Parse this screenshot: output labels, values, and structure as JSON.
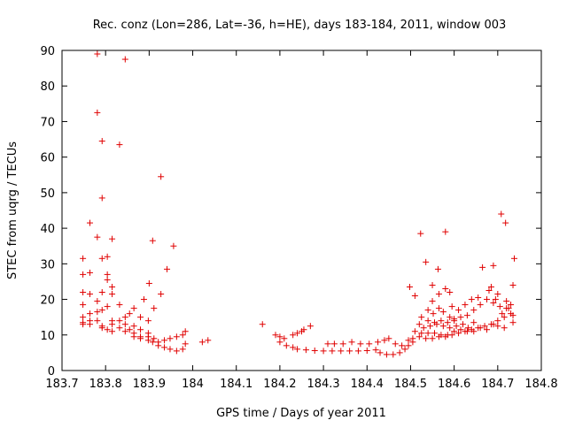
{
  "chart_data": {
    "type": "scatter",
    "title": "Rec. conz (Lon=286, Lat=-36, h=HE), days 183-184, 2011, window 003",
    "xlabel": "GPS time / Days of year 2011",
    "ylabel": "STEC from uqrg / TECUs",
    "xlim": [
      183.7,
      184.8
    ],
    "ylim": [
      0,
      90
    ],
    "xticks": [
      "183.7",
      "183.8",
      "183.9",
      "184",
      "184.1",
      "184.2",
      "184.3",
      "184.4",
      "184.5",
      "184.6",
      "184.7",
      "184.8"
    ],
    "yticks": [
      "0",
      "10",
      "20",
      "30",
      "40",
      "50",
      "60",
      "70",
      "80",
      "90"
    ],
    "grid": false,
    "legend": "none",
    "marker": "plus",
    "color": "#e00000",
    "points": [
      [
        183.781,
        89
      ],
      [
        183.845,
        87.5
      ],
      [
        183.781,
        72.5
      ],
      [
        183.792,
        64.5
      ],
      [
        183.832,
        63.5
      ],
      [
        183.927,
        54.5
      ],
      [
        183.792,
        48.5
      ],
      [
        183.764,
        41.5
      ],
      [
        183.781,
        37.5
      ],
      [
        183.815,
        37
      ],
      [
        183.908,
        36.5
      ],
      [
        183.956,
        35
      ],
      [
        183.748,
        31.5
      ],
      [
        183.792,
        31.5
      ],
      [
        183.804,
        32
      ],
      [
        183.941,
        28.5
      ],
      [
        183.764,
        27.5
      ],
      [
        183.748,
        27
      ],
      [
        183.804,
        27
      ],
      [
        183.804,
        25.5
      ],
      [
        183.9,
        24.5
      ],
      [
        183.815,
        23.5
      ],
      [
        183.748,
        22
      ],
      [
        183.764,
        21.5
      ],
      [
        183.792,
        22
      ],
      [
        183.815,
        21.5
      ],
      [
        183.927,
        21.5
      ],
      [
        183.888,
        20
      ],
      [
        183.781,
        19.5
      ],
      [
        183.748,
        18.5
      ],
      [
        183.804,
        18
      ],
      [
        183.832,
        18.5
      ],
      [
        183.865,
        17.5
      ],
      [
        183.792,
        17
      ],
      [
        183.911,
        17.5
      ],
      [
        183.781,
        16.5
      ],
      [
        183.764,
        16
      ],
      [
        183.855,
        16
      ],
      [
        183.748,
        15
      ],
      [
        183.845,
        15
      ],
      [
        183.88,
        15
      ],
      [
        183.748,
        13.5
      ],
      [
        183.764,
        14
      ],
      [
        183.781,
        14
      ],
      [
        183.815,
        14
      ],
      [
        183.832,
        14
      ],
      [
        183.898,
        14
      ],
      [
        183.748,
        13
      ],
      [
        183.764,
        13
      ],
      [
        183.792,
        12.5
      ],
      [
        183.815,
        13
      ],
      [
        183.845,
        13
      ],
      [
        183.865,
        12.5
      ],
      [
        183.792,
        12
      ],
      [
        183.804,
        11.5
      ],
      [
        183.832,
        12
      ],
      [
        183.855,
        11.5
      ],
      [
        183.88,
        11.5
      ],
      [
        183.815,
        11
      ],
      [
        183.845,
        11
      ],
      [
        183.865,
        10.5
      ],
      [
        183.898,
        10.5
      ],
      [
        183.865,
        9.5
      ],
      [
        183.88,
        9.5
      ],
      [
        183.898,
        9.5
      ],
      [
        183.911,
        9
      ],
      [
        183.88,
        9
      ],
      [
        183.898,
        8.5
      ],
      [
        183.921,
        8
      ],
      [
        183.935,
        8.5
      ],
      [
        183.948,
        9
      ],
      [
        183.963,
        9.5
      ],
      [
        183.977,
        10
      ],
      [
        183.983,
        11
      ],
      [
        183.908,
        8
      ],
      [
        183.921,
        7
      ],
      [
        183.935,
        6.5
      ],
      [
        183.948,
        6
      ],
      [
        183.963,
        5.5
      ],
      [
        183.977,
        6
      ],
      [
        183.983,
        7.5
      ],
      [
        184.022,
        8
      ],
      [
        184.035,
        8.5
      ],
      [
        184.16,
        13
      ],
      [
        184.19,
        10
      ],
      [
        184.2,
        9.5
      ],
      [
        184.21,
        9
      ],
      [
        184.23,
        10
      ],
      [
        184.24,
        10.5
      ],
      [
        184.25,
        11
      ],
      [
        184.255,
        11.5
      ],
      [
        184.27,
        12.5
      ],
      [
        184.2,
        8
      ],
      [
        184.215,
        7
      ],
      [
        184.23,
        6.5
      ],
      [
        184.24,
        6
      ],
      [
        184.26,
        5.8
      ],
      [
        184.28,
        5.6
      ],
      [
        184.3,
        5.5
      ],
      [
        184.32,
        5.5
      ],
      [
        184.34,
        5.5
      ],
      [
        184.36,
        5.5
      ],
      [
        184.38,
        5.5
      ],
      [
        184.4,
        5.6
      ],
      [
        184.42,
        5.8
      ],
      [
        184.31,
        7.5
      ],
      [
        184.325,
        7.5
      ],
      [
        184.345,
        7.5
      ],
      [
        184.365,
        8
      ],
      [
        184.385,
        7.5
      ],
      [
        184.405,
        7.5
      ],
      [
        184.425,
        8
      ],
      [
        184.44,
        8.5
      ],
      [
        184.45,
        9
      ],
      [
        184.43,
        5
      ],
      [
        184.445,
        4.5
      ],
      [
        184.46,
        4.5
      ],
      [
        184.475,
        5
      ],
      [
        184.487,
        6
      ],
      [
        184.495,
        7
      ],
      [
        184.505,
        8
      ],
      [
        184.465,
        7.5
      ],
      [
        184.48,
        7
      ],
      [
        184.495,
        8.5
      ],
      [
        184.498,
        23.5
      ],
      [
        184.51,
        21
      ],
      [
        184.523,
        38.5
      ],
      [
        184.535,
        30.5
      ],
      [
        184.55,
        24
      ],
      [
        184.563,
        28.5
      ],
      [
        184.58,
        39
      ],
      [
        184.59,
        22
      ],
      [
        184.54,
        17
      ],
      [
        184.552,
        16
      ],
      [
        184.565,
        17.5
      ],
      [
        184.575,
        16.5
      ],
      [
        184.59,
        15
      ],
      [
        184.6,
        14
      ],
      [
        184.52,
        13
      ],
      [
        184.53,
        12
      ],
      [
        184.545,
        12.5
      ],
      [
        184.56,
        13
      ],
      [
        184.575,
        12.5
      ],
      [
        184.59,
        12
      ],
      [
        184.605,
        12.5
      ],
      [
        184.62,
        13
      ],
      [
        184.632,
        12
      ],
      [
        184.645,
        13.5
      ],
      [
        184.51,
        11
      ],
      [
        184.525,
        10.5
      ],
      [
        184.54,
        10.5
      ],
      [
        184.555,
        10.5
      ],
      [
        184.57,
        10
      ],
      [
        184.585,
        10
      ],
      [
        184.6,
        11
      ],
      [
        184.615,
        11.5
      ],
      [
        184.63,
        11
      ],
      [
        184.645,
        11
      ],
      [
        184.66,
        12
      ],
      [
        184.675,
        11.5
      ],
      [
        184.69,
        13
      ],
      [
        184.7,
        12.5
      ],
      [
        184.715,
        12
      ],
      [
        184.505,
        9
      ],
      [
        184.52,
        9.5
      ],
      [
        184.535,
        9
      ],
      [
        184.55,
        9
      ],
      [
        184.565,
        9.5
      ],
      [
        184.58,
        9.5
      ],
      [
        184.595,
        10
      ],
      [
        184.61,
        10.5
      ],
      [
        184.625,
        11
      ],
      [
        184.64,
        11.5
      ],
      [
        184.655,
        12
      ],
      [
        184.67,
        12.5
      ],
      [
        184.685,
        13
      ],
      [
        184.7,
        14
      ],
      [
        184.715,
        15
      ],
      [
        184.73,
        16
      ],
      [
        184.735,
        13.5
      ],
      [
        184.72,
        17.5
      ],
      [
        184.705,
        18
      ],
      [
        184.69,
        19
      ],
      [
        184.675,
        20
      ],
      [
        184.66,
        18.5
      ],
      [
        184.645,
        17
      ],
      [
        184.63,
        15.5
      ],
      [
        184.615,
        15
      ],
      [
        184.6,
        14.5
      ],
      [
        184.585,
        13.5
      ],
      [
        184.57,
        14
      ],
      [
        184.555,
        13.5
      ],
      [
        184.54,
        14
      ],
      [
        184.525,
        15
      ],
      [
        184.55,
        19.5
      ],
      [
        184.565,
        21.5
      ],
      [
        184.58,
        23
      ],
      [
        184.595,
        18
      ],
      [
        184.61,
        17
      ],
      [
        184.625,
        18.5
      ],
      [
        184.64,
        20
      ],
      [
        184.655,
        20.5
      ],
      [
        184.665,
        29
      ],
      [
        184.68,
        22.5
      ],
      [
        184.69,
        29.5
      ],
      [
        184.695,
        20
      ],
      [
        184.708,
        44
      ],
      [
        184.718,
        41.5
      ],
      [
        184.725,
        17.5
      ],
      [
        184.73,
        18.5
      ],
      [
        184.735,
        24
      ],
      [
        184.738,
        31.5
      ],
      [
        184.7,
        21.5
      ],
      [
        184.685,
        23.5
      ],
      [
        184.72,
        19.5
      ],
      [
        184.735,
        15.5
      ],
      [
        184.71,
        16
      ]
    ]
  }
}
